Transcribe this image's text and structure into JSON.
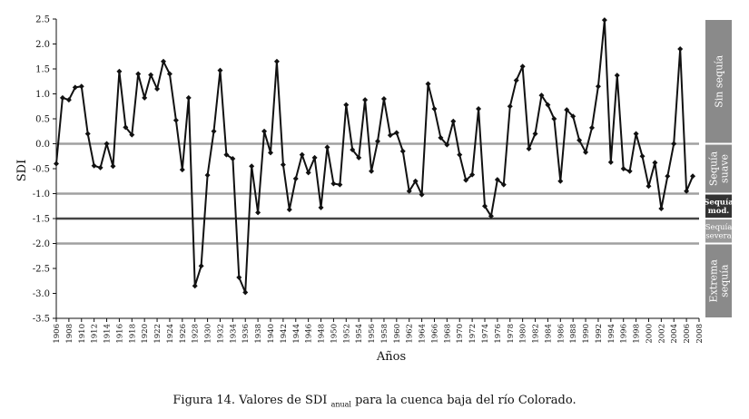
{
  "figure": {
    "caption_prefix": "Figura 14. Valores de SDI",
    "caption_subscript": "anual",
    "caption_suffix": " para la cuenca baja del río Colorado."
  },
  "chart_data": {
    "type": "line",
    "ylabel": "SDI",
    "xlabel": "Años",
    "ylim": [
      -3.5,
      2.5
    ],
    "yticks": [
      "2.5",
      "2.0",
      "1.5",
      "1.0",
      "0.5",
      "0.0",
      "-0.5",
      "-1.0",
      "-1.5",
      "-2.0",
      "-2.5",
      "-3.0",
      "-3.5"
    ],
    "xticks": [
      "1906",
      "1908",
      "1910",
      "1912",
      "1914",
      "1916",
      "1918",
      "1920",
      "1922",
      "1924",
      "1926",
      "1928",
      "1930",
      "1932",
      "1934",
      "1936",
      "1938",
      "1940",
      "1942",
      "1944",
      "1946",
      "1948",
      "1950",
      "1952",
      "1954",
      "1956",
      "1958",
      "1960",
      "1962",
      "1964",
      "1966",
      "1968",
      "1970",
      "1972",
      "1974",
      "1976",
      "1978",
      "1980",
      "1982",
      "1984",
      "1986",
      "1988",
      "1990",
      "1992",
      "1994",
      "1996",
      "1998",
      "2000",
      "2002",
      "2004",
      "2006",
      "2008"
    ],
    "threshold_lines": [
      {
        "value": 0.0,
        "color": "#a0a0a0"
      },
      {
        "value": -1.0,
        "color": "#a0a0a0"
      },
      {
        "value": -1.5,
        "color": "#444444"
      },
      {
        "value": -2.0,
        "color": "#a0a0a0"
      }
    ],
    "categories_bands": [
      {
        "label_lines": [
          "Sin sequía"
        ],
        "from": 0.0,
        "to": 2.5,
        "color": "#8a8a8a"
      },
      {
        "label_lines": [
          "Sequía",
          "suave"
        ],
        "from": -1.0,
        "to": 0.0,
        "color": "#8a8a8a"
      },
      {
        "label_lines": [
          "Sequía",
          "mod."
        ],
        "from": -1.5,
        "to": -1.0,
        "color": "#333333"
      },
      {
        "label_lines": [
          "Sequía",
          "severa"
        ],
        "from": -2.0,
        "to": -1.5,
        "color": "#9a9a9a"
      },
      {
        "label_lines": [
          "Extrema",
          "sequía"
        ],
        "from": -3.5,
        "to": -2.0,
        "color": "#8a8a8a"
      }
    ],
    "series": [
      {
        "color": "#111111",
        "x": [
          1906,
          1907,
          1908,
          1909,
          1910,
          1911,
          1912,
          1913,
          1914,
          1915,
          1916,
          1917,
          1918,
          1919,
          1920,
          1921,
          1922,
          1923,
          1924,
          1925,
          1926,
          1927,
          1928,
          1929,
          1930,
          1931,
          1932,
          1933,
          1934,
          1935,
          1936,
          1937,
          1938,
          1939,
          1940,
          1941,
          1942,
          1943,
          1944,
          1945,
          1946,
          1947,
          1948,
          1949,
          1950,
          1951,
          1952,
          1953,
          1954,
          1955,
          1956,
          1957,
          1958,
          1959,
          1960,
          1961,
          1962,
          1963,
          1964,
          1965,
          1966,
          1967,
          1968,
          1969,
          1970,
          1971,
          1972,
          1973,
          1974,
          1975,
          1976,
          1977,
          1978,
          1979,
          1980,
          1981,
          1982,
          1983,
          1984,
          1985,
          1986,
          1987,
          1988,
          1989,
          1990,
          1991,
          1992,
          1993,
          1994,
          1995,
          1996,
          1997,
          1998,
          1999,
          2000,
          2001,
          2002,
          2003,
          2004,
          2005,
          2006,
          2007
        ],
        "values": [
          -0.4,
          0.92,
          0.88,
          1.13,
          1.15,
          0.2,
          -0.44,
          -0.48,
          0.0,
          -0.45,
          1.45,
          0.33,
          0.18,
          1.4,
          0.92,
          1.38,
          1.1,
          1.65,
          1.4,
          0.47,
          -0.52,
          0.92,
          -2.85,
          -2.45,
          -0.63,
          0.25,
          1.47,
          -0.22,
          -0.3,
          -2.68,
          -2.98,
          -0.45,
          -1.38,
          0.25,
          -0.18,
          1.65,
          -0.42,
          -1.32,
          -0.7,
          -0.22,
          -0.58,
          -0.28,
          -1.28,
          -0.07,
          -0.8,
          -0.82,
          0.78,
          -0.12,
          -0.28,
          0.88,
          -0.55,
          0.05,
          0.9,
          0.17,
          0.22,
          -0.15,
          -0.95,
          -0.75,
          -1.02,
          1.2,
          0.7,
          0.12,
          -0.02,
          0.45,
          -0.22,
          -0.73,
          -0.62,
          0.7,
          -1.25,
          -1.45,
          -0.72,
          -0.82,
          0.75,
          1.27,
          1.55,
          -0.1,
          0.2,
          0.97,
          0.78,
          0.5,
          -0.75,
          0.68,
          0.55,
          0.07,
          -0.17,
          0.32,
          1.15,
          2.48,
          -0.37,
          1.37,
          -0.5,
          -0.55,
          0.2,
          -0.25,
          -0.85,
          -0.38,
          -1.3,
          -0.65,
          0.0,
          1.9,
          -0.95,
          -0.65
        ]
      }
    ]
  }
}
